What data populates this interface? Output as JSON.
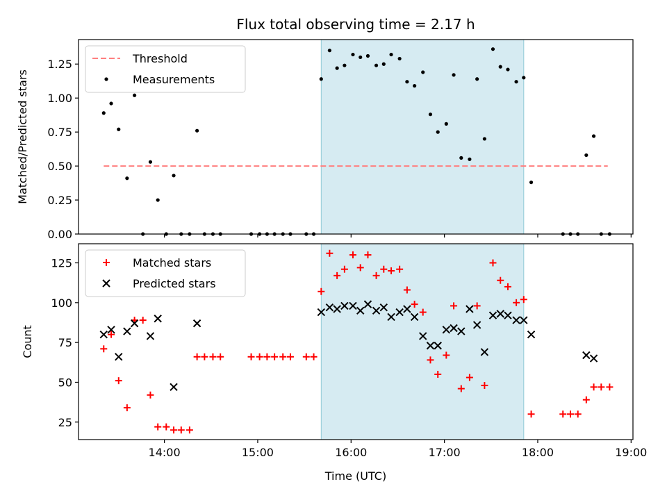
{
  "chart_data": {
    "title": "Flux total observing time = 2.17 h",
    "xlabel": "Time (UTC)",
    "x_unit": "hours UTC",
    "xlim": [
      13.08,
      19.02
    ],
    "x_ticks": [
      14,
      15,
      16,
      17,
      18,
      19
    ],
    "x_tick_labels": [
      "14:00",
      "15:00",
      "16:00",
      "17:00",
      "18:00",
      "19:00"
    ],
    "highlight_span": {
      "x0": 15.68,
      "x1": 17.85,
      "color": "#add8e6"
    },
    "panels": [
      {
        "type": "scatter",
        "ylabel": "Matched/Predicted stars",
        "ylim": [
          0,
          1.43
        ],
        "y_ticks": [
          0,
          0.25,
          0.5,
          0.75,
          1.0,
          1.25
        ],
        "y_tick_labels": [
          "0.00",
          "0.25",
          "0.50",
          "0.75",
          "1.00",
          "1.25"
        ],
        "legend": "upper-left",
        "series": [
          {
            "name": "Threshold",
            "kind": "dashed-line",
            "color": "#ff7f7f",
            "x": [
              13.35,
              18.75
            ],
            "y": [
              0.5,
              0.5
            ]
          },
          {
            "name": "Measurements",
            "kind": "dot",
            "color": "#000000",
            "x": [
              13.35,
              13.43,
              13.51,
              13.6,
              13.68,
              13.77,
              13.85,
              13.93,
              14.02,
              14.1,
              14.18,
              14.27,
              14.35,
              14.43,
              14.52,
              14.6,
              14.93,
              15.02,
              15.1,
              15.18,
              15.27,
              15.35,
              15.52,
              15.6,
              15.68,
              15.77,
              15.85,
              15.93,
              16.02,
              16.1,
              16.18,
              16.27,
              16.35,
              16.43,
              16.52,
              16.6,
              16.68,
              16.77,
              16.85,
              16.93,
              17.02,
              17.1,
              17.18,
              17.27,
              17.35,
              17.43,
              17.52,
              17.6,
              17.68,
              17.77,
              17.85,
              17.93,
              18.27,
              18.35,
              18.43,
              18.52,
              18.6,
              18.68,
              18.77
            ],
            "y": [
              0.89,
              0.96,
              0.77,
              0.41,
              1.02,
              0.0,
              0.53,
              0.25,
              0.0,
              0.43,
              0.0,
              0.0,
              0.76,
              0.0,
              0.0,
              0.0,
              0.0,
              0.0,
              0.0,
              0.0,
              0.0,
              0.0,
              0.0,
              0.0,
              1.14,
              1.35,
              1.22,
              1.24,
              1.32,
              1.3,
              1.31,
              1.24,
              1.25,
              1.32,
              1.29,
              1.12,
              1.09,
              1.19,
              0.88,
              0.75,
              0.81,
              1.17,
              0.56,
              0.55,
              1.14,
              0.7,
              1.36,
              1.23,
              1.21,
              1.12,
              1.15,
              0.38,
              0.0,
              0.0,
              0.0,
              0.58,
              0.72,
              0.0,
              0.0
            ]
          }
        ]
      },
      {
        "type": "scatter",
        "ylabel": "Count",
        "ylim": [
          14,
          137
        ],
        "y_ticks": [
          25,
          50,
          75,
          100,
          125
        ],
        "y_tick_labels": [
          "25",
          "50",
          "75",
          "100",
          "125"
        ],
        "legend": "upper-left",
        "series": [
          {
            "name": "Matched stars",
            "kind": "plus",
            "color": "#ff0000",
            "x": [
              13.35,
              13.43,
              13.51,
              13.6,
              13.68,
              13.77,
              13.85,
              13.93,
              14.02,
              14.1,
              14.18,
              14.27,
              14.35,
              14.43,
              14.52,
              14.6,
              14.93,
              15.02,
              15.1,
              15.18,
              15.27,
              15.35,
              15.52,
              15.6,
              15.68,
              15.77,
              15.85,
              15.93,
              16.02,
              16.1,
              16.18,
              16.27,
              16.35,
              16.43,
              16.52,
              16.6,
              16.68,
              16.77,
              16.85,
              16.93,
              17.02,
              17.1,
              17.18,
              17.27,
              17.35,
              17.43,
              17.52,
              17.6,
              17.68,
              17.77,
              17.85,
              17.93,
              18.27,
              18.35,
              18.43,
              18.52,
              18.6,
              18.68,
              18.77
            ],
            "y": [
              71,
              80,
              51,
              34,
              89,
              89,
              42,
              22,
              22,
              20,
              20,
              20,
              66,
              66,
              66,
              66,
              66,
              66,
              66,
              66,
              66,
              66,
              66,
              66,
              107,
              131,
              117,
              121,
              130,
              122,
              130,
              117,
              121,
              120,
              121,
              108,
              99,
              94,
              64,
              55,
              67,
              98,
              46,
              53,
              98,
              48,
              125,
              114,
              110,
              100,
              102,
              30,
              30,
              30,
              30,
              39,
              47,
              47,
              47
            ]
          },
          {
            "name": "Predicted stars",
            "kind": "cross",
            "color": "#000000",
            "x": [
              13.35,
              13.43,
              13.51,
              13.6,
              13.68,
              13.85,
              13.93,
              14.1,
              14.35,
              15.68,
              15.77,
              15.85,
              15.93,
              16.02,
              16.1,
              16.18,
              16.27,
              16.35,
              16.43,
              16.52,
              16.6,
              16.68,
              16.77,
              16.85,
              16.93,
              17.02,
              17.1,
              17.18,
              17.27,
              17.35,
              17.43,
              17.52,
              17.6,
              17.68,
              17.77,
              17.85,
              17.93,
              18.52,
              18.6
            ],
            "y": [
              80,
              83,
              66,
              82,
              87,
              79,
              90,
              47,
              87,
              94,
              97,
              96,
              98,
              98,
              95,
              99,
              95,
              97,
              91,
              94,
              96,
              91,
              79,
              73,
              73,
              83,
              84,
              82,
              96,
              86,
              69,
              92,
              93,
              92,
              89,
              89,
              80,
              67,
              65
            ]
          }
        ]
      }
    ]
  }
}
